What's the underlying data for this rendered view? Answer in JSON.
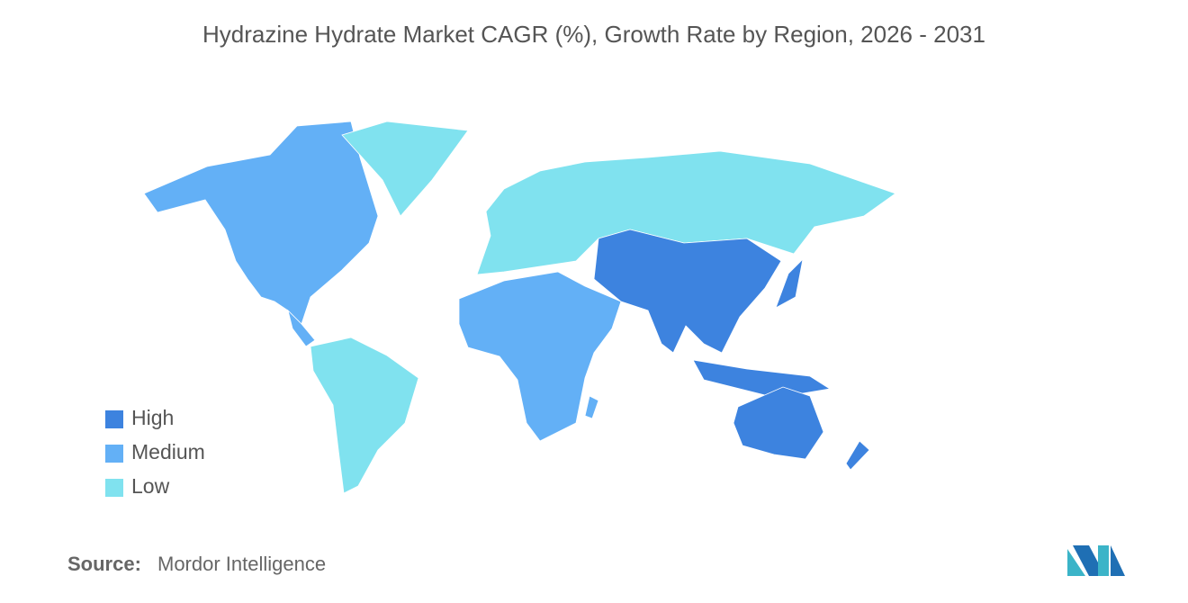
{
  "title": "Hydrazine Hydrate Market CAGR (%), Growth Rate by Region, 2026 - 2031",
  "legend": [
    {
      "label": "High",
      "color": "#3d83df"
    },
    {
      "label": "Medium",
      "color": "#63b0f6"
    },
    {
      "label": "Low",
      "color": "#80e2ef"
    }
  ],
  "source": {
    "label": "Source:",
    "text": "Mordor Intelligence"
  }
}
